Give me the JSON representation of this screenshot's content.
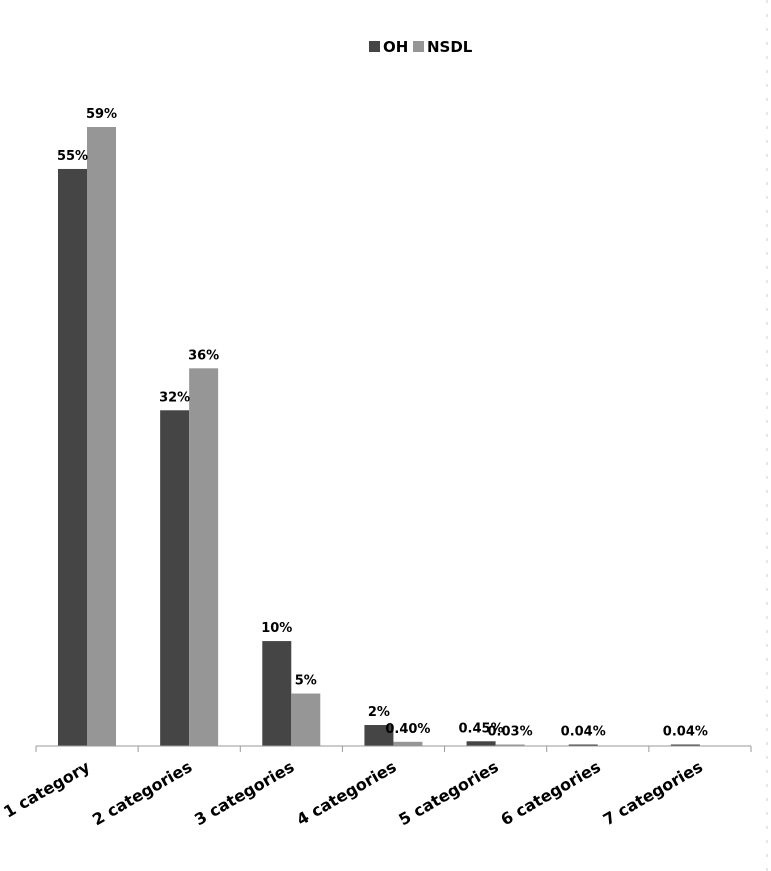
{
  "chart_data": {
    "type": "bar",
    "categories": [
      "1 category",
      "2 categories",
      "3 categories",
      "4 categories",
      "5 categories",
      "6 categories",
      "7 categories"
    ],
    "series": [
      {
        "name": "OH",
        "color": "#454545",
        "values": [
          55,
          32,
          10,
          2,
          0.45,
          0.04,
          0.04
        ],
        "labels": [
          "55%",
          "32%",
          "10%",
          "2%",
          "0.45%",
          "0.04%",
          "0.04%"
        ]
      },
      {
        "name": "NSDL",
        "color": "#969696",
        "values": [
          59,
          36,
          5,
          0.4,
          0.03,
          null,
          null
        ],
        "labels": [
          "59%",
          "36%",
          "5%",
          "0.40%",
          "0.03%",
          null,
          null
        ]
      }
    ],
    "ylim": [
      0,
      59
    ],
    "legend": "top",
    "grid": false,
    "xlabel": "",
    "ylabel": ""
  }
}
